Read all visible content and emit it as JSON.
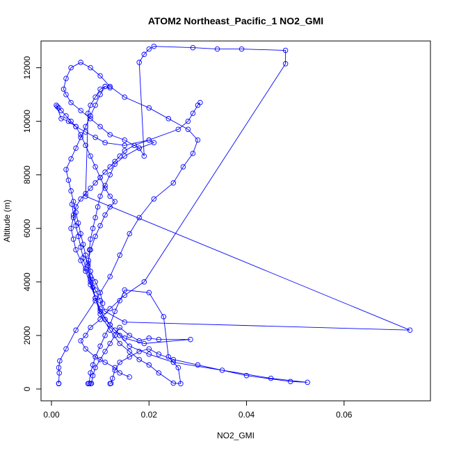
{
  "chart_data": {
    "type": "line",
    "title": "ATOM2 Northeast_Pacific_1 NO2_GMI",
    "xlabel": "NO2_GMI",
    "ylabel": "Altitude (m)",
    "xlim": [
      0.0,
      0.075
    ],
    "ylim": [
      0,
      13000
    ],
    "x_ticks": [
      "0.00",
      "0.02",
      "0.04",
      "0.06"
    ],
    "y_ticks": [
      "0",
      "2000",
      "4000",
      "6000",
      "8000",
      "10000",
      "12000"
    ],
    "grid": false,
    "legend": "none",
    "markers": "open-circle",
    "color": "#0000ff",
    "series": [
      {
        "x": [
          0.0015,
          0.0015,
          0.0016,
          0.0015,
          0.0017,
          0.003,
          0.005,
          0.009,
          0.012,
          0.014,
          0.016,
          0.018,
          0.021,
          0.025,
          0.027,
          0.029,
          0.03,
          0.028,
          0.024,
          0.02,
          0.015,
          0.012,
          0.01,
          0.008,
          0.006,
          0.004,
          0.003,
          0.0025,
          0.003,
          0.004,
          0.006,
          0.008,
          0.01,
          0.012,
          0.015,
          0.018,
          0.019,
          0.018,
          0.019,
          0.02,
          0.021,
          0.029,
          0.034,
          0.039,
          0.048,
          0.048,
          0.019,
          0.015,
          0.012,
          0.01,
          0.008,
          0.007,
          0.006,
          0.007,
          0.009,
          0.011,
          0.013,
          0.014,
          0.016
        ],
        "y": [
          200,
          210,
          600,
          800,
          1050,
          1500,
          2200,
          3300,
          4200,
          5000,
          5800,
          6400,
          7100,
          7700,
          8300,
          8800,
          9300,
          9700,
          10100,
          10500,
          10900,
          11300,
          11700,
          12000,
          12200,
          12000,
          11600,
          11200,
          11000,
          10700,
          10400,
          10100,
          9800,
          9500,
          9300,
          9000,
          8700,
          12200,
          12500,
          12700,
          12800,
          12750,
          12700,
          12700,
          12650,
          12150,
          4000,
          3500,
          3000,
          2600,
          2300,
          2000,
          1800,
          1500,
          1200,
          1000,
          800,
          600,
          450
        ]
      },
      {
        "x": [
          0.0075,
          0.0077,
          0.008,
          0.0085,
          0.009,
          0.01,
          0.011,
          0.012,
          0.013,
          0.014,
          0.015,
          0.02,
          0.023,
          0.024,
          0.026,
          0.0265,
          0.025,
          0.022,
          0.02,
          0.018,
          0.016,
          0.014,
          0.012,
          0.01,
          0.009,
          0.008,
          0.0075,
          0.008,
          0.009,
          0.01,
          0.011,
          0.012,
          0.013,
          0.012,
          0.011,
          0.01,
          0.009,
          0.008,
          0.007,
          0.006,
          0.005,
          0.004,
          0.003,
          0.002,
          0.0015,
          0.0012,
          0.001,
          0.002,
          0.0035,
          0.005,
          0.007,
          0.009,
          0.011,
          0.015,
          0.02,
          0.026,
          0.028,
          0.029,
          0.03,
          0.0305
        ],
        "y": [
          200,
          210,
          600,
          900,
          1200,
          1600,
          2000,
          2400,
          2900,
          3300,
          3700,
          3600,
          2700,
          1200,
          800,
          200,
          220,
          600,
          900,
          1100,
          1400,
          1700,
          2200,
          2800,
          3400,
          4000,
          4700,
          5200,
          5700,
          6100,
          6500,
          6800,
          7000,
          7200,
          7500,
          7900,
          8300,
          8700,
          9100,
          9500,
          9800,
          10000,
          10200,
          10400,
          10500,
          10550,
          10600,
          10100,
          10000,
          9800,
          9600,
          9400,
          9200,
          9100,
          9300,
          9700,
          10000,
          10300,
          10600,
          10700
        ]
      },
      {
        "x": [
          0.012,
          0.0122,
          0.0125,
          0.013,
          0.014,
          0.016,
          0.018,
          0.02,
          0.022,
          0.025,
          0.03,
          0.04,
          0.049,
          0.0525,
          0.045,
          0.035,
          0.025,
          0.02,
          0.016,
          0.014,
          0.012,
          0.01,
          0.009,
          0.008,
          0.007,
          0.006,
          0.005,
          0.0045,
          0.004,
          0.0045,
          0.005,
          0.006,
          0.007,
          0.008,
          0.009,
          0.01,
          0.011,
          0.012,
          0.013,
          0.014,
          0.015,
          0.017,
          0.02,
          0.021,
          0.018,
          0.015,
          0.013,
          0.012,
          0.011,
          0.01,
          0.0095,
          0.009,
          0.0085,
          0.008,
          0.0078,
          0.0076,
          0.008,
          0.009,
          0.01,
          0.0105
        ],
        "y": [
          200,
          210,
          400,
          700,
          1000,
          1200,
          1400,
          1500,
          1300,
          1100,
          900,
          500,
          280,
          250,
          400,
          700,
          1000,
          1300,
          1600,
          2000,
          2400,
          2900,
          3400,
          3900,
          4400,
          4800,
          5200,
          5600,
          6000,
          6400,
          6800,
          7100,
          7300,
          7500,
          7700,
          7900,
          8100,
          8300,
          8500,
          8700,
          8900,
          9100,
          9300,
          9200,
          9000,
          8700,
          8400,
          8000,
          7600,
          7200,
          6800,
          6400,
          6000,
          5600,
          5200,
          4800,
          4400,
          4000,
          3600,
          3200
        ]
      },
      {
        "x": [
          0.008,
          0.0082,
          0.0085,
          0.009,
          0.01,
          0.011,
          0.012,
          0.013,
          0.014,
          0.016,
          0.018,
          0.02,
          0.022,
          0.0285,
          0.019,
          0.015,
          0.013,
          0.011,
          0.01,
          0.009,
          0.0085,
          0.008,
          0.0075,
          0.007,
          0.0065,
          0.006,
          0.0055,
          0.005,
          0.0045,
          0.004,
          0.0035,
          0.003,
          0.004,
          0.005,
          0.006,
          0.007,
          0.008,
          0.009,
          0.01,
          0.011,
          0.012,
          0.011,
          0.01,
          0.009,
          0.008,
          0.0075,
          0.007,
          0.0735,
          0.015,
          0.011,
          0.01,
          0.009,
          0.008,
          0.007,
          0.0065,
          0.006,
          0.0055,
          0.005,
          0.0045,
          0.0042
        ],
        "y": [
          200,
          210,
          500,
          800,
          1100,
          1400,
          1700,
          2000,
          2300,
          2000,
          1800,
          1900,
          1850,
          1850,
          1700,
          1900,
          2200,
          2600,
          3000,
          3400,
          3800,
          4200,
          4600,
          5000,
          5400,
          5800,
          6200,
          6600,
          7000,
          7400,
          7800,
          8200,
          8600,
          9000,
          9400,
          9800,
          10200,
          10600,
          11000,
          11300,
          11250,
          11300,
          11200,
          10900,
          10600,
          10300,
          7200,
          2200,
          2500,
          2900,
          3300,
          3700,
          4100,
          4500,
          4900,
          5300,
          5700,
          6100,
          6500,
          6900
        ]
      }
    ]
  }
}
